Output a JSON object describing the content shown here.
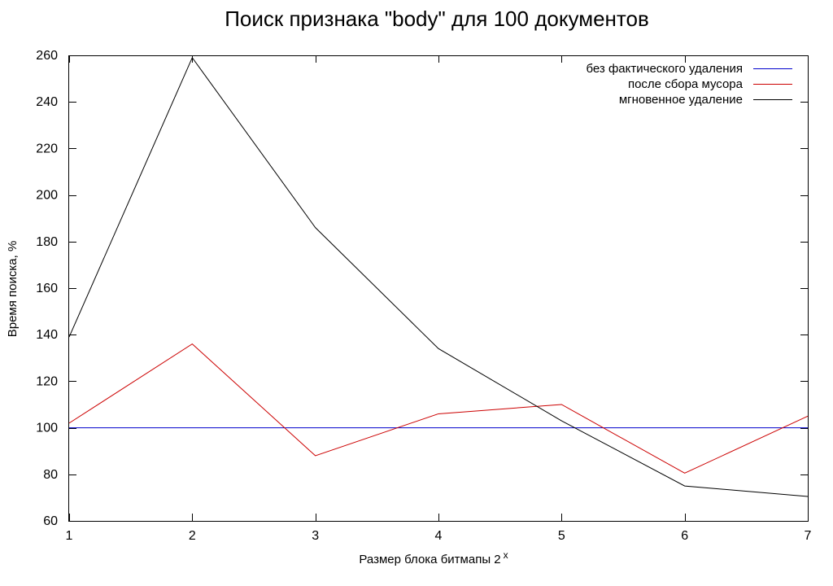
{
  "chart_data": {
    "type": "line",
    "title": "Поиск признака \"body\" для 100 документов",
    "xlabel": "Размер блока битмапы 2",
    "xlabel_superscript": "x",
    "ylabel": "Время поиска, %",
    "x": [
      1,
      2,
      3,
      4,
      5,
      6,
      7
    ],
    "xlim": [
      1,
      7
    ],
    "ylim": [
      60,
      260
    ],
    "xticks": [
      1,
      2,
      3,
      4,
      5,
      6,
      7
    ],
    "yticks": [
      60,
      80,
      100,
      120,
      140,
      160,
      180,
      200,
      220,
      240,
      260
    ],
    "grid": false,
    "legend_position": "top-right",
    "series": [
      {
        "name": "без фактического удаления",
        "color": "#0000cc",
        "values": [
          100,
          100,
          100,
          100,
          100,
          100,
          100
        ]
      },
      {
        "name": "после сбора мусора",
        "color": "#cc0000",
        "values": [
          102,
          136,
          88,
          106,
          110,
          80.5,
          105
        ]
      },
      {
        "name": "мгновенное удаление",
        "color": "#000000",
        "values": [
          139,
          259,
          186,
          134,
          103,
          75,
          70.5
        ]
      }
    ]
  }
}
